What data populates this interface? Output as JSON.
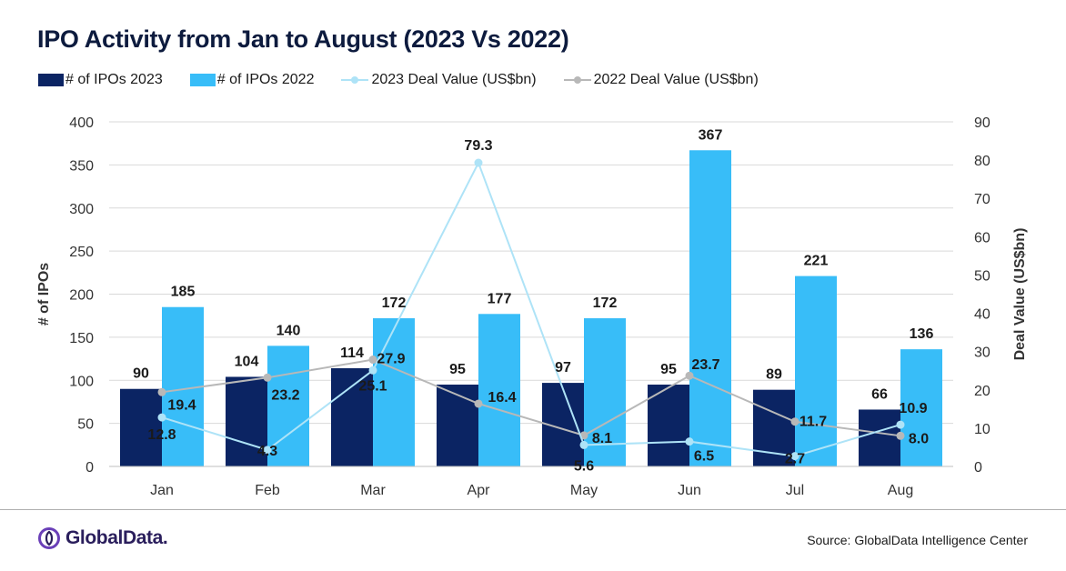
{
  "title": "IPO Activity from Jan to August (2023 Vs 2022)",
  "legend": [
    {
      "label": "# of IPOs 2023",
      "kind": "bar",
      "color": "#0b2463"
    },
    {
      "label": "# of IPOs 2022",
      "kind": "bar",
      "color": "#38bdf8"
    },
    {
      "label": "2023 Deal Value (US$bn)",
      "kind": "line",
      "color": "#aee3f7"
    },
    {
      "label": "2022 Deal Value (US$bn)",
      "kind": "line",
      "color": "#b8b8b8"
    }
  ],
  "chart_data": {
    "type": "bar",
    "categories": [
      "Jan",
      "Feb",
      "Mar",
      "Apr",
      "May",
      "Jun",
      "Jul",
      "Aug"
    ],
    "series": [
      {
        "name": "# of IPOs 2023",
        "type": "bar",
        "axis": "left",
        "color": "#0b2463",
        "values": [
          90,
          104,
          114,
          95,
          97,
          95,
          89,
          66
        ]
      },
      {
        "name": "# of IPOs 2022",
        "type": "bar",
        "axis": "left",
        "color": "#38bdf8",
        "values": [
          185,
          140,
          172,
          177,
          172,
          367,
          221,
          136
        ]
      },
      {
        "name": "2023 Deal Value (US$bn)",
        "type": "line",
        "axis": "right",
        "color": "#aee3f7",
        "values": [
          12.8,
          4.3,
          25.1,
          79.3,
          5.6,
          6.5,
          2.7,
          10.9
        ]
      },
      {
        "name": "2022 Deal Value (US$bn)",
        "type": "line",
        "axis": "right",
        "color": "#b8b8b8",
        "values": [
          19.4,
          23.2,
          27.9,
          16.4,
          8.1,
          23.7,
          11.7,
          8.0
        ]
      }
    ],
    "ylabel": "# of IPOs",
    "y2label": "Deal Value (US$bn)",
    "ylim": [
      0,
      400
    ],
    "yticks": [
      0,
      50,
      100,
      150,
      200,
      250,
      300,
      350,
      400
    ],
    "y2lim": [
      0,
      90
    ],
    "y2ticks": [
      0,
      10,
      20,
      30,
      40,
      50,
      60,
      70,
      80,
      90
    ],
    "grid": true,
    "legend_position": "top-left"
  },
  "footer": {
    "logo_text": "GlobalData.",
    "source": "Source:  GlobalData Intelligence Center"
  }
}
